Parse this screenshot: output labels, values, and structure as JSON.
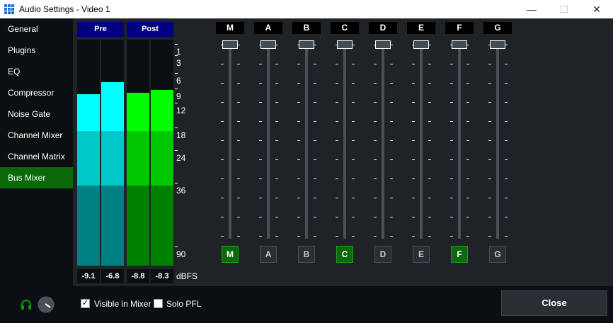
{
  "window": {
    "title": "Audio Settings - Video 1",
    "minimize": "—",
    "maximize": "☐",
    "close": "✕"
  },
  "sidebar": {
    "items": [
      {
        "label": "General"
      },
      {
        "label": "Plugins"
      },
      {
        "label": "EQ"
      },
      {
        "label": "Compressor"
      },
      {
        "label": "Noise Gate"
      },
      {
        "label": "Channel Mixer"
      },
      {
        "label": "Channel Matrix"
      },
      {
        "label": "Bus Mixer",
        "active": true
      }
    ]
  },
  "meters": {
    "pre_label": "Pre",
    "post_label": "Post",
    "channels": [
      {
        "group": "pre",
        "value": "-9.1",
        "level_db": -9.1
      },
      {
        "group": "pre",
        "value": "-6.8",
        "level_db": -6.8
      },
      {
        "group": "post",
        "value": "-8.8",
        "level_db": -8.8
      },
      {
        "group": "post",
        "value": "-8.3",
        "level_db": -8.3
      }
    ],
    "scale": [
      "1",
      "3",
      "6",
      "9",
      "12",
      "18",
      "24",
      "36",
      "90"
    ],
    "unit": "dBFS",
    "colors": {
      "pre": [
        "#00ffff",
        "#00c8c8",
        "#008080"
      ],
      "post": [
        "#00ff00",
        "#00c800",
        "#008000"
      ]
    }
  },
  "buses": [
    {
      "label": "M",
      "active": true,
      "fader": 1
    },
    {
      "label": "A",
      "active": false,
      "fader": 1
    },
    {
      "label": "B",
      "active": false,
      "fader": 1
    },
    {
      "label": "C",
      "active": true,
      "fader": 1
    },
    {
      "label": "D",
      "active": false,
      "fader": 1
    },
    {
      "label": "E",
      "active": false,
      "fader": 1
    },
    {
      "label": "F",
      "active": true,
      "fader": 1
    },
    {
      "label": "G",
      "active": false,
      "fader": 1
    }
  ],
  "footer": {
    "visible_in_mixer": {
      "label": "Visible in Mixer",
      "checked": true
    },
    "solo_pfl": {
      "label": "Solo PFL",
      "checked": false
    },
    "close_label": "Close",
    "headphone_icon": "headphones-icon",
    "volume_knob_icon": "knob-icon"
  }
}
